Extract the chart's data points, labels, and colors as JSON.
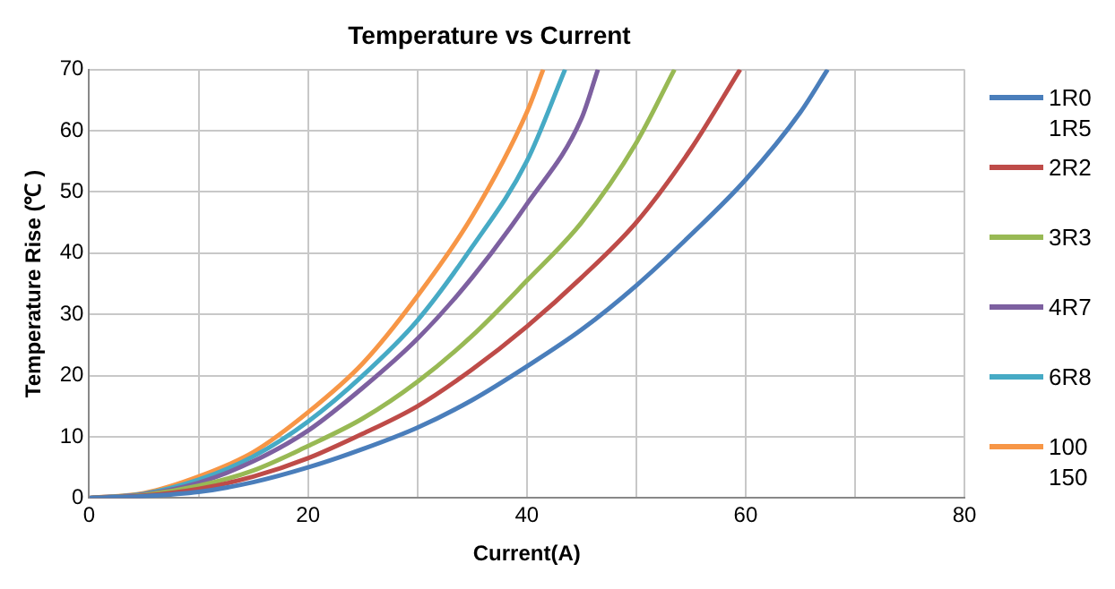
{
  "chart_data": {
    "type": "line",
    "title": "Temperature vs Current",
    "xlabel": "Current(A)",
    "ylabel": "Temperature Rise (℃ )",
    "xlim": [
      0,
      80
    ],
    "xticks": [
      0,
      {
        "value": 10,
        "label": null
      },
      20,
      {
        "value": 30,
        "label": null
      },
      40,
      {
        "value": 50,
        "label": null
      },
      60,
      {
        "value": 70,
        "label": null
      },
      80
    ],
    "ylim": [
      0,
      70
    ],
    "yticks": [
      0,
      10,
      20,
      30,
      40,
      50,
      60,
      70
    ],
    "grid": true,
    "legend": "right",
    "marker": "none",
    "line_style": "solid",
    "series": [
      {
        "name": "1R0 1R5",
        "color": "#4a7ebb",
        "x": [
          0,
          5,
          10,
          15,
          20,
          25,
          30,
          35,
          40,
          45,
          50,
          55,
          60,
          65,
          67.5
        ],
        "values": [
          0,
          0.3,
          1,
          2.6,
          5,
          8,
          11.5,
          16,
          21.5,
          27.5,
          34.7,
          43,
          52,
          63,
          70
        ]
      },
      {
        "name": "2R2",
        "color": "#be4b48",
        "x": [
          0,
          5,
          10,
          15,
          20,
          25,
          30,
          35,
          40,
          45,
          50,
          55,
          59.5
        ],
        "values": [
          0,
          0.4,
          1.5,
          3.5,
          6.5,
          10.5,
          15,
          21,
          28,
          36,
          45,
          57,
          70
        ]
      },
      {
        "name": "3R3",
        "color": "#98b954",
        "x": [
          0,
          5,
          10,
          15,
          20,
          25,
          30,
          35,
          40,
          45,
          50,
          53.5
        ],
        "values": [
          0,
          0.5,
          2,
          4.5,
          8.5,
          13,
          19,
          26.5,
          35.5,
          45,
          58,
          70
        ]
      },
      {
        "name": "4R7",
        "color": "#7d60a0",
        "x": [
          0,
          5,
          10,
          15,
          20,
          25,
          30,
          35,
          40,
          45,
          46.5
        ],
        "values": [
          0,
          0.6,
          2.5,
          6,
          11,
          18,
          26,
          36,
          48,
          62,
          70
        ]
      },
      {
        "name": "6R8",
        "color": "#46aac5",
        "x": [
          0,
          5,
          10,
          15,
          20,
          25,
          30,
          35,
          40,
          43.5
        ],
        "values": [
          0,
          0.7,
          3,
          6.8,
          12.5,
          20,
          29,
          41,
          55,
          70
        ]
      },
      {
        "name": "100 150",
        "color": "#f79646",
        "x": [
          0,
          5,
          10,
          15,
          20,
          25,
          30,
          35,
          40,
          41.5
        ],
        "values": [
          0,
          0.8,
          3.5,
          7.5,
          14,
          22,
          33,
          46,
          63,
          70
        ]
      }
    ]
  }
}
